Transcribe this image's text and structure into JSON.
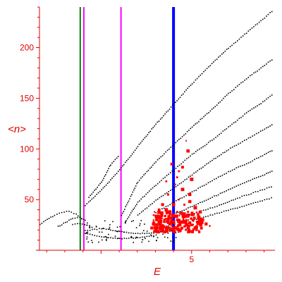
{
  "colors": {
    "axis": "#e00000",
    "tick": "#e00000",
    "black_points": "#000000",
    "red_points": "#ff0000",
    "green_line": "#008000",
    "magenta_line": "#ff00ff",
    "blue_line": "#0000ff"
  },
  "chart_data": {
    "type": "scatter",
    "title": "",
    "xlabel": "E",
    "ylabel": "<n>",
    "xlim": [
      -3.4,
      9.6
    ],
    "ylim": [
      0,
      240
    ],
    "x_ticks": [
      5
    ],
    "y_ticks": [
      50,
      100,
      150,
      200
    ],
    "tick_labels": {
      "x": [
        "5"
      ],
      "y": [
        "50",
        "100",
        "150",
        "200"
      ]
    },
    "grid": false,
    "legend": "none",
    "vertical_lines": [
      {
        "x": -1.15,
        "color": "green"
      },
      {
        "x": -0.95,
        "color": "magenta"
      },
      {
        "x": 1.1,
        "color": "magenta"
      },
      {
        "x": 4.0,
        "color": "blue"
      }
    ],
    "series": [
      {
        "color": "black",
        "style": "dotted-curves",
        "curves": [
          [
            [
              -3.4,
              26
            ],
            [
              -3.0,
              31
            ],
            [
              -2.6,
              35
            ],
            [
              -2.2,
              38
            ],
            [
              -1.8,
              39
            ],
            [
              -1.4,
              36
            ],
            [
              -1.0,
              30
            ]
          ],
          [
            [
              -2.4,
              24
            ],
            [
              -2.0,
              28
            ],
            [
              -1.6,
              32
            ],
            [
              -1.2,
              33
            ],
            [
              -0.8,
              29
            ]
          ],
          [
            [
              -1.6,
              26
            ],
            [
              -1.2,
              27
            ],
            [
              -0.8,
              25
            ],
            [
              -0.4,
              22
            ]
          ],
          [
            [
              -0.9,
              45
            ],
            [
              0.0,
              60
            ],
            [
              1.0,
              80
            ],
            [
              2.0,
              103
            ],
            [
              3.0,
              125
            ],
            [
              4.0,
              145
            ],
            [
              5.0,
              165
            ],
            [
              6.0,
              183
            ],
            [
              7.0,
              200
            ],
            [
              8.0,
              215
            ],
            [
              9.0,
              230
            ],
            [
              9.5,
              238
            ]
          ],
          [
            [
              -0.7,
              53
            ],
            [
              0.0,
              68
            ],
            [
              0.5,
              85
            ],
            [
              1.0,
              95
            ]
          ],
          [
            [
              1.1,
              35
            ],
            [
              2.0,
              68
            ],
            [
              3.0,
              88
            ],
            [
              4.0,
              105
            ],
            [
              5.0,
              122
            ],
            [
              6.0,
              138
            ],
            [
              7.0,
              155
            ],
            [
              8.0,
              170
            ],
            [
              9.0,
              183
            ],
            [
              9.5,
              190
            ]
          ],
          [
            [
              1.3,
              28
            ],
            [
              2.0,
              48
            ],
            [
              3.0,
              65
            ],
            [
              4.0,
              80
            ],
            [
              5.0,
              95
            ],
            [
              6.0,
              108
            ],
            [
              7.0,
              122
            ],
            [
              8.0,
              136
            ],
            [
              9.0,
              148
            ],
            [
              9.5,
              155
            ]
          ],
          [
            [
              2.0,
              35
            ],
            [
              3.0,
              50
            ],
            [
              4.0,
              62
            ],
            [
              5.0,
              75
            ],
            [
              6.0,
              88
            ],
            [
              7.0,
              100
            ],
            [
              8.0,
              110
            ],
            [
              9.0,
              120
            ],
            [
              9.5,
              125
            ]
          ],
          [
            [
              3.0,
              38
            ],
            [
              4.0,
              48
            ],
            [
              5.0,
              58
            ],
            [
              6.0,
              68
            ],
            [
              7.0,
              78
            ],
            [
              8.0,
              86
            ],
            [
              9.0,
              95
            ],
            [
              9.5,
              100
            ]
          ],
          [
            [
              4.0,
              36
            ],
            [
              5.0,
              44
            ],
            [
              6.0,
              52
            ],
            [
              7.0,
              60
            ],
            [
              8.0,
              68
            ],
            [
              9.0,
              75
            ],
            [
              9.5,
              80
            ]
          ],
          [
            [
              4.5,
              33
            ],
            [
              5.5,
              39
            ],
            [
              6.5,
              45
            ],
            [
              7.5,
              52
            ],
            [
              8.5,
              58
            ],
            [
              9.5,
              64
            ]
          ],
          [
            [
              5.0,
              30
            ],
            [
              6.0,
              35
            ],
            [
              7.0,
              40
            ],
            [
              8.0,
              45
            ],
            [
              9.0,
              50
            ],
            [
              9.5,
              53
            ]
          ],
          [
            [
              -0.9,
              20
            ],
            [
              0.0,
              22
            ],
            [
              1.0,
              19
            ],
            [
              2.0,
              17
            ],
            [
              3.0,
              18
            ],
            [
              4.0,
              20
            ]
          ],
          [
            [
              -0.9,
              17
            ],
            [
              0.0,
              14
            ],
            [
              1.0,
              12
            ],
            [
              2.0,
              13
            ],
            [
              3.0,
              15
            ]
          ]
        ]
      },
      {
        "color": "red",
        "style": "scatter",
        "points": [
          [
            2.8,
            22
          ],
          [
            2.9,
            26
          ],
          [
            3.0,
            19
          ],
          [
            3.1,
            24
          ],
          [
            3.2,
            28
          ],
          [
            3.3,
            21
          ],
          [
            3.3,
            33
          ],
          [
            3.4,
            25
          ],
          [
            3.5,
            18
          ],
          [
            3.5,
            30
          ],
          [
            3.6,
            22
          ],
          [
            3.6,
            40
          ],
          [
            3.7,
            27
          ],
          [
            3.7,
            55
          ],
          [
            3.8,
            20
          ],
          [
            3.8,
            35
          ],
          [
            3.9,
            24
          ],
          [
            3.9,
            85
          ],
          [
            4.0,
            28
          ],
          [
            4.0,
            45
          ],
          [
            4.1,
            22
          ],
          [
            4.1,
            65
          ],
          [
            4.2,
            30
          ],
          [
            4.2,
            38
          ],
          [
            4.3,
            25
          ],
          [
            4.3,
            50
          ],
          [
            4.4,
            20
          ],
          [
            4.4,
            28
          ],
          [
            4.5,
            33
          ],
          [
            4.5,
            60
          ],
          [
            4.6,
            24
          ],
          [
            4.6,
            45
          ],
          [
            4.7,
            30
          ],
          [
            4.7,
            108
          ],
          [
            4.8,
            22
          ],
          [
            4.8,
            38
          ],
          [
            4.9,
            27
          ],
          [
            4.9,
            55
          ],
          [
            5.0,
            25
          ],
          [
            5.0,
            70
          ],
          [
            5.1,
            30
          ],
          [
            5.1,
            35
          ],
          [
            5.2,
            22
          ],
          [
            5.2,
            42
          ],
          [
            5.3,
            28
          ],
          [
            5.4,
            33
          ],
          [
            5.5,
            25
          ],
          [
            5.6,
            30
          ],
          [
            5.8,
            26
          ],
          [
            6.0,
            24
          ],
          [
            3.6,
            68
          ],
          [
            3.2,
            40
          ],
          [
            4.3,
            78
          ],
          [
            4.8,
            98
          ],
          [
            3.4,
            45
          ],
          [
            4.5,
            82
          ],
          [
            4.2,
            72
          ],
          [
            4.9,
            48
          ],
          [
            3.9,
            32
          ],
          [
            4.6,
            36
          ]
        ]
      }
    ]
  }
}
